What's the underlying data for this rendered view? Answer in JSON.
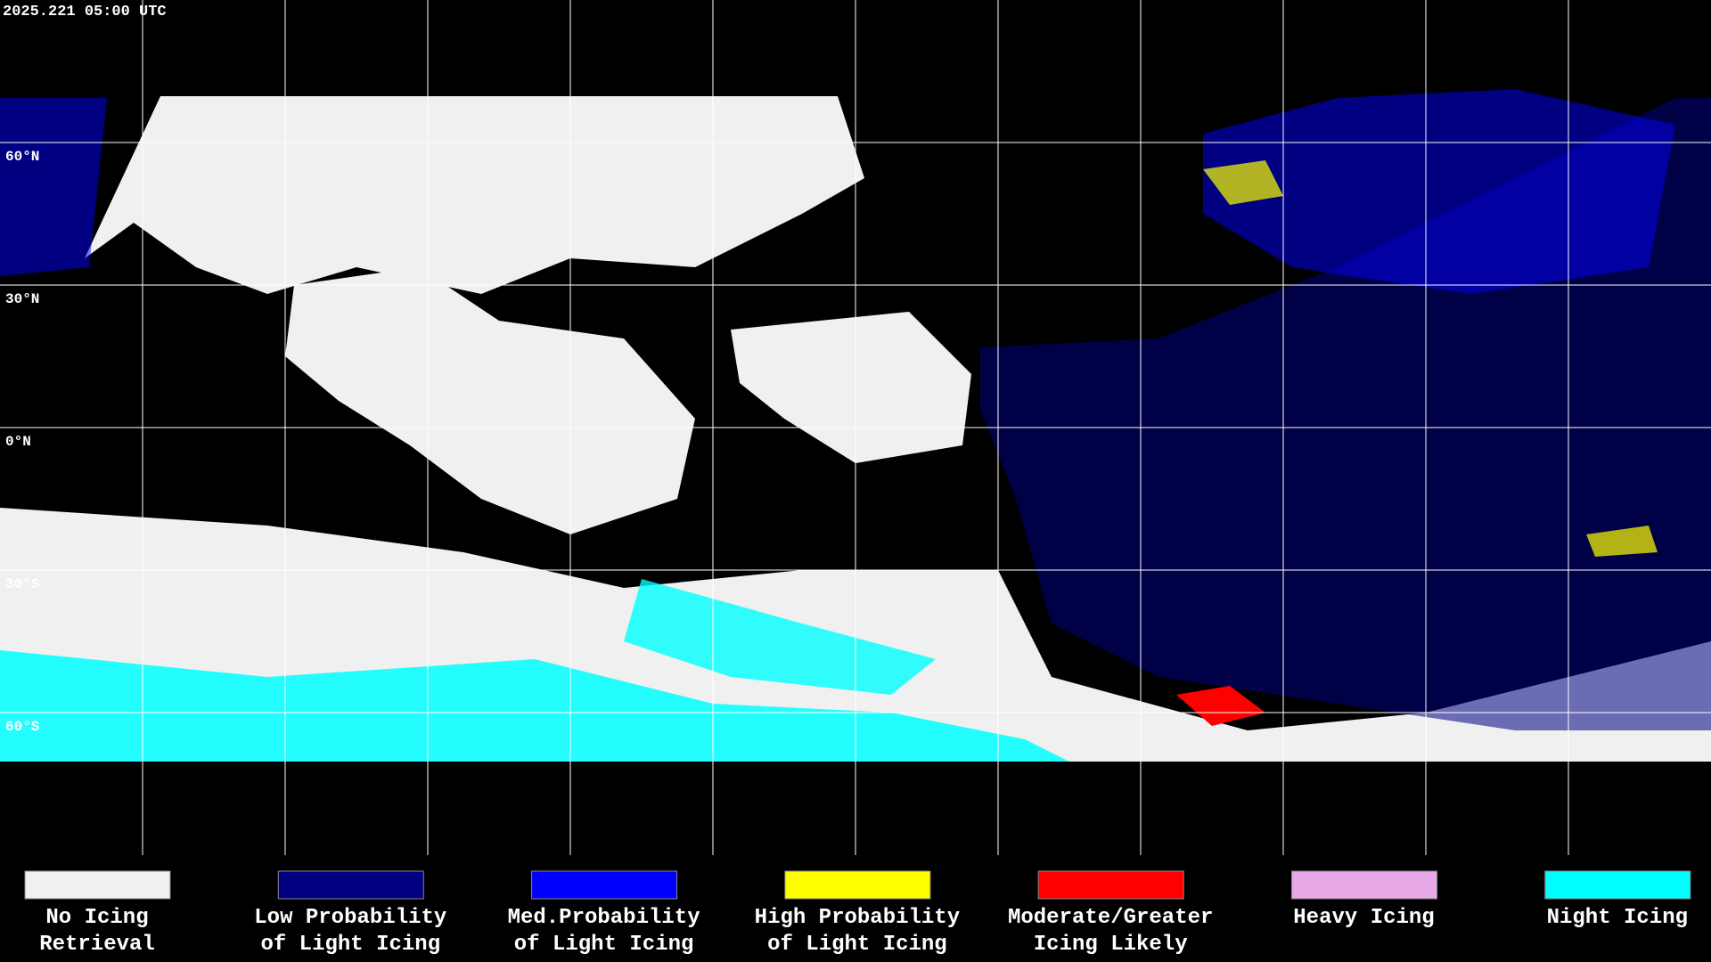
{
  "header": {
    "timestamp": "2025.221 05:00 UTC"
  },
  "latitude_labels": [
    "60°N",
    "30°N",
    "0°N",
    "30°S",
    "60°S"
  ],
  "legend": [
    {
      "lines": [
        "No Icing",
        "Retrieval"
      ],
      "color": "#f0f0f0"
    },
    {
      "lines": [
        "Low Probability",
        "of Light Icing"
      ],
      "color": "#000080"
    },
    {
      "lines": [
        "Med.Probability",
        "of Light Icing"
      ],
      "color": "#0000ff"
    },
    {
      "lines": [
        "High Probability",
        "of Light Icing"
      ],
      "color": "#ffff00"
    },
    {
      "lines": [
        "Moderate/Greater",
        "Icing Likely"
      ],
      "color": "#ff0000"
    },
    {
      "lines": [
        "Heavy Icing"
      ],
      "color": "#e6a8e6"
    },
    {
      "lines": [
        "Night Icing"
      ],
      "color": "#00ffff"
    }
  ]
}
